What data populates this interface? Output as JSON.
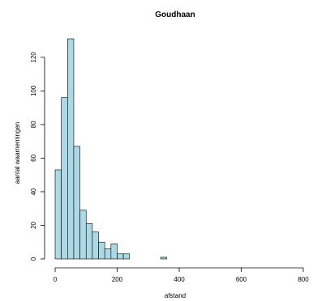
{
  "chart_data": {
    "type": "bar",
    "title": "Goudhaan",
    "xlabel": "afstand",
    "ylabel": "aantal waarnemingen",
    "bin_width": 20,
    "bins": [
      {
        "x0": 0,
        "x1": 20,
        "count": 53
      },
      {
        "x0": 20,
        "x1": 40,
        "count": 96
      },
      {
        "x0": 40,
        "x1": 60,
        "count": 131
      },
      {
        "x0": 60,
        "x1": 80,
        "count": 67
      },
      {
        "x0": 80,
        "x1": 100,
        "count": 29
      },
      {
        "x0": 100,
        "x1": 120,
        "count": 21
      },
      {
        "x0": 120,
        "x1": 140,
        "count": 16
      },
      {
        "x0": 140,
        "x1": 160,
        "count": 10
      },
      {
        "x0": 160,
        "x1": 180,
        "count": 6
      },
      {
        "x0": 180,
        "x1": 200,
        "count": 9
      },
      {
        "x0": 200,
        "x1": 220,
        "count": 3
      },
      {
        "x0": 220,
        "x1": 240,
        "count": 3
      },
      {
        "x0": 240,
        "x1": 260,
        "count": 0
      },
      {
        "x0": 260,
        "x1": 280,
        "count": 0
      },
      {
        "x0": 280,
        "x1": 300,
        "count": 0
      },
      {
        "x0": 300,
        "x1": 320,
        "count": 0
      },
      {
        "x0": 320,
        "x1": 340,
        "count": 0
      },
      {
        "x0": 340,
        "x1": 360,
        "count": 1
      },
      {
        "x0": 360,
        "x1": 380,
        "count": 0
      },
      {
        "x0": 380,
        "x1": 400,
        "count": 0
      },
      {
        "x0": 400,
        "x1": 420,
        "count": 0
      },
      {
        "x0": 420,
        "x1": 440,
        "count": 0
      },
      {
        "x0": 440,
        "x1": 460,
        "count": 0
      },
      {
        "x0": 460,
        "x1": 480,
        "count": 0
      },
      {
        "x0": 480,
        "x1": 500,
        "count": 0
      },
      {
        "x0": 500,
        "x1": 520,
        "count": 0
      },
      {
        "x0": 520,
        "x1": 540,
        "count": 0
      },
      {
        "x0": 540,
        "x1": 560,
        "count": 0
      },
      {
        "x0": 560,
        "x1": 580,
        "count": 0
      },
      {
        "x0": 580,
        "x1": 600,
        "count": 0
      },
      {
        "x0": 600,
        "x1": 620,
        "count": 0
      },
      {
        "x0": 620,
        "x1": 640,
        "count": 0
      },
      {
        "x0": 640,
        "x1": 660,
        "count": 0
      },
      {
        "x0": 660,
        "x1": 680,
        "count": 0
      },
      {
        "x0": 680,
        "x1": 700,
        "count": 0
      },
      {
        "x0": 700,
        "x1": 720,
        "count": 0
      },
      {
        "x0": 720,
        "x1": 740,
        "count": 0
      },
      {
        "x0": 740,
        "x1": 760,
        "count": 0
      }
    ],
    "xlim": [
      0,
      800
    ],
    "ylim": [
      0,
      131
    ],
    "xticks": [
      0,
      200,
      400,
      600,
      800
    ],
    "yticks": [
      0,
      20,
      40,
      60,
      80,
      100,
      120
    ],
    "grid": false,
    "colors": {
      "bar_fill": "#add8e6",
      "bar_stroke": "#000000"
    }
  }
}
